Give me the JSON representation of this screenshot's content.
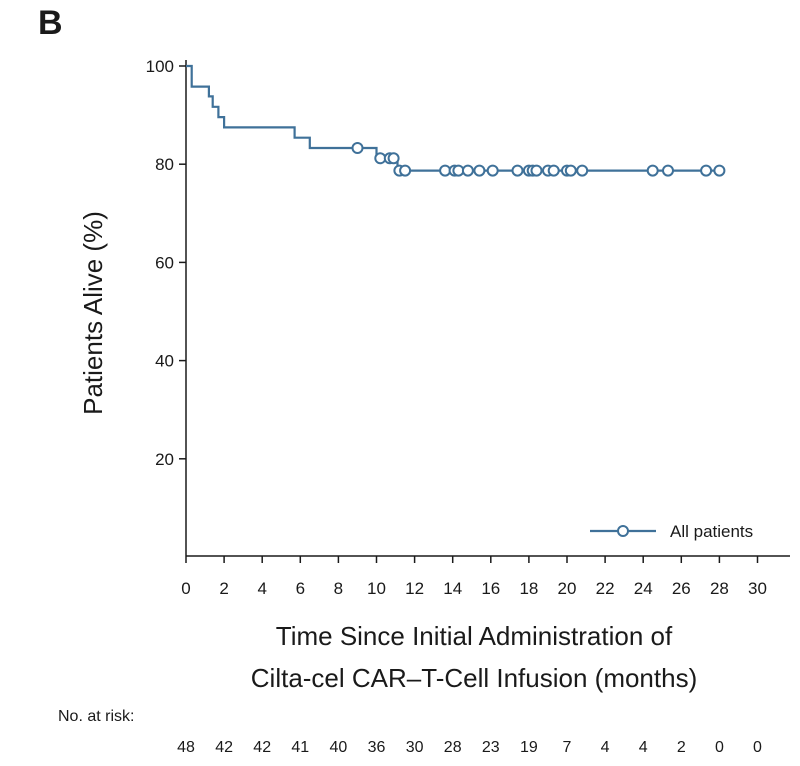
{
  "panel_label": "B",
  "chart_data": {
    "type": "line",
    "subtype": "kaplan-meier",
    "xlabel_line1": "Time Since Initial Administration of",
    "xlabel_line2": "Cilta-cel CAR–T-Cell Infusion (months)",
    "ylabel": "Patients Alive (%)",
    "xlim": [
      0,
      31
    ],
    "ylim": [
      0,
      100
    ],
    "x_ticks": [
      0,
      2,
      4,
      6,
      8,
      10,
      12,
      14,
      16,
      18,
      20,
      22,
      24,
      26,
      28,
      30
    ],
    "x_tick_labels": [
      "0",
      "2",
      "4",
      "6",
      "8",
      "10",
      "12",
      "14",
      "16",
      "18",
      "20",
      "22",
      "24",
      "26",
      "28",
      "30"
    ],
    "y_ticks": [
      20,
      40,
      60,
      80,
      100
    ],
    "y_tick_labels": [
      "20",
      "40",
      "60",
      "80",
      "100"
    ],
    "legend": {
      "label": "All patients",
      "position": "bottom-right"
    },
    "color": "#3f7199",
    "series": [
      {
        "name": "All patients",
        "step_points": [
          [
            0,
            100
          ],
          [
            0.3,
            100
          ],
          [
            0.3,
            95.8
          ],
          [
            1.2,
            95.8
          ],
          [
            1.2,
            93.8
          ],
          [
            1.4,
            93.8
          ],
          [
            1.4,
            91.7
          ],
          [
            1.7,
            91.7
          ],
          [
            1.7,
            89.6
          ],
          [
            2.0,
            89.6
          ],
          [
            2.0,
            87.5
          ],
          [
            5.7,
            87.5
          ],
          [
            5.7,
            85.4
          ],
          [
            6.5,
            85.4
          ],
          [
            6.5,
            83.3
          ],
          [
            10.0,
            83.3
          ],
          [
            10.0,
            81.2
          ],
          [
            11.1,
            81.2
          ],
          [
            11.1,
            78.7
          ],
          [
            28.2,
            78.7
          ]
        ],
        "censored": [
          [
            9.0,
            83.3
          ],
          [
            10.2,
            81.2
          ],
          [
            10.7,
            81.2
          ],
          [
            10.9,
            81.2
          ],
          [
            11.2,
            78.7
          ],
          [
            11.5,
            78.7
          ],
          [
            13.6,
            78.7
          ],
          [
            14.1,
            78.7
          ],
          [
            14.3,
            78.7
          ],
          [
            14.8,
            78.7
          ],
          [
            15.4,
            78.7
          ],
          [
            16.1,
            78.7
          ],
          [
            17.4,
            78.7
          ],
          [
            18.0,
            78.7
          ],
          [
            18.2,
            78.7
          ],
          [
            18.4,
            78.7
          ],
          [
            19.0,
            78.7
          ],
          [
            19.3,
            78.7
          ],
          [
            20.0,
            78.7
          ],
          [
            20.2,
            78.7
          ],
          [
            20.8,
            78.7
          ],
          [
            24.5,
            78.7
          ],
          [
            25.3,
            78.7
          ],
          [
            27.3,
            78.7
          ],
          [
            28.0,
            78.7
          ]
        ]
      }
    ]
  },
  "at_risk": {
    "label": "No. at risk:",
    "values": [
      "48",
      "42",
      "42",
      "41",
      "40",
      "36",
      "30",
      "28",
      "23",
      "19",
      "7",
      "4",
      "4",
      "2",
      "0",
      "0"
    ]
  }
}
